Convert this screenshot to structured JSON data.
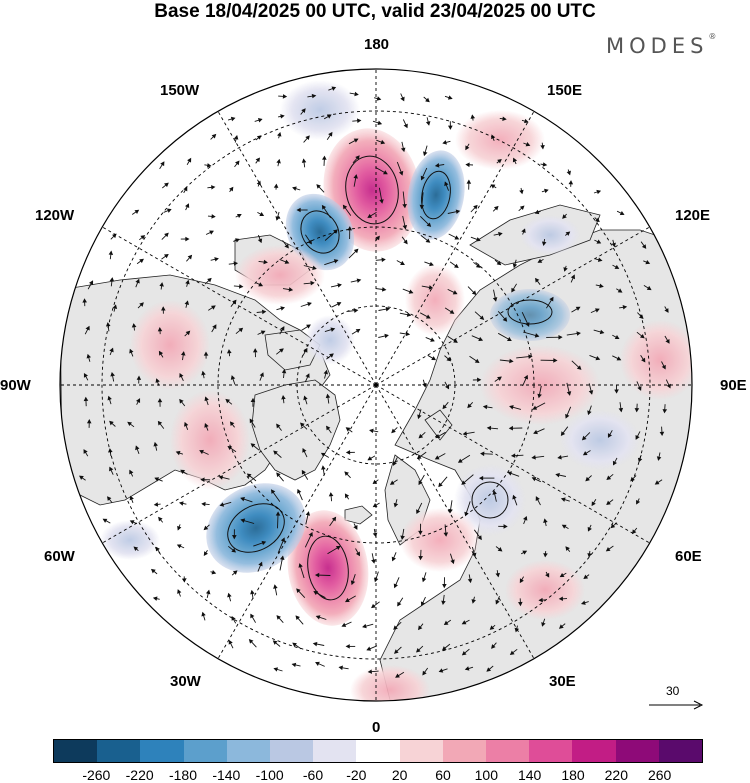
{
  "title": "Base 18/04/2025 00 UTC, valid 23/04/2025 00 UTC",
  "brand": {
    "name": "MODES",
    "mark": "®"
  },
  "longitude_labels": {
    "lon_180": "180",
    "lon_150E": "150E",
    "lon_120E": "120E",
    "lon_90E": "90E",
    "lon_60E": "60E",
    "lon_30E": "30E",
    "lon_0": "0",
    "lon_30W": "30W",
    "lon_60W": "60W",
    "lon_90W": "90W",
    "lon_120W": "120W",
    "lon_150W": "150W"
  },
  "reference_vector": {
    "value": "30"
  },
  "colorbar": {
    "colors": [
      "#0d3a5c",
      "#19608f",
      "#2e82bb",
      "#5c9fcc",
      "#8cb8dc",
      "#bac8e3",
      "#e3e3f1",
      "#ffffff",
      "#f7d3d6",
      "#f2a8b6",
      "#ec7fa6",
      "#df4d98",
      "#c21d85",
      "#8e0a78",
      "#5a0a6c"
    ],
    "ticks": [
      "-260",
      "-220",
      "-180",
      "-140",
      "-100",
      "-60",
      "-20",
      "20",
      "60",
      "100",
      "140",
      "180",
      "220",
      "260"
    ]
  },
  "map_colors": {
    "land": "#e6e6e6",
    "ocean": "#ffffff",
    "coast": "#222222",
    "grid": "#000000"
  }
}
